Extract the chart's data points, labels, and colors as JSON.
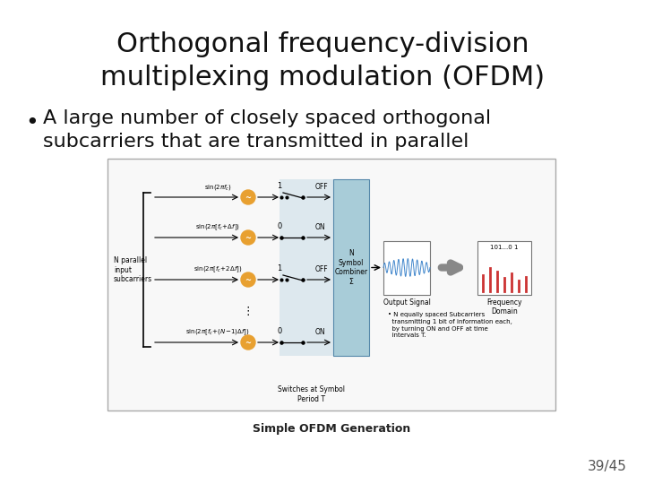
{
  "title_line1": "Orthogonal frequency-division",
  "title_line2": "multiplexing modulation (OFDM)",
  "bullet_line1": "A large number of closely spaced orthogonal",
  "bullet_line2": "subcarriers that are transmitted in parallel",
  "page_number": "39/45",
  "caption": "Simple OFDM Generation",
  "background_color": "#ffffff",
  "title_fontsize": 22,
  "bullet_fontsize": 16,
  "page_fontsize": 11,
  "caption_fontsize": 9
}
